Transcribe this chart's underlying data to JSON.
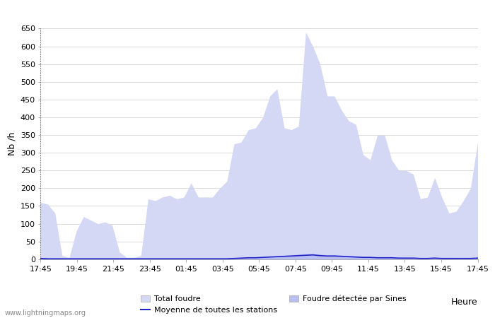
{
  "heure_label": "Heure",
  "ylabel": "Nb /h",
  "ylim": [
    0,
    650
  ],
  "yticks": [
    0,
    50,
    100,
    150,
    200,
    250,
    300,
    350,
    400,
    450,
    500,
    550,
    600,
    650
  ],
  "xtick_labels": [
    "17:45",
    "19:45",
    "21:45",
    "23:45",
    "01:45",
    "03:45",
    "05:45",
    "07:45",
    "09:45",
    "11:45",
    "13:45",
    "15:45",
    "17:45"
  ],
  "watermark": "www.lightningmaps.org",
  "total_foudre_color": "#d4d8f4",
  "sines_color": "#b8bef0",
  "moyenne_color": "#2222cc",
  "background_color": "#ffffff",
  "grid_color": "#cccccc",
  "spine_color": "#888888",
  "title_fontsize": 11,
  "axis_fontsize": 9,
  "tick_fontsize": 8,
  "total_foudre": [
    160,
    155,
    130,
    10,
    5,
    80,
    120,
    110,
    100,
    105,
    95,
    20,
    5,
    5,
    10,
    170,
    165,
    175,
    180,
    170,
    175,
    215,
    175,
    175,
    175,
    200,
    220,
    325,
    330,
    365,
    370,
    400,
    460,
    480,
    370,
    365,
    375,
    640,
    600,
    550,
    460,
    460,
    420,
    390,
    380,
    295,
    280,
    350,
    350,
    280,
    250,
    250,
    240,
    170,
    175,
    230,
    175,
    130,
    135,
    165,
    200,
    330
  ],
  "sines": [
    5,
    3,
    2,
    1,
    1,
    2,
    2,
    2,
    2,
    2,
    2,
    1,
    1,
    1,
    1,
    2,
    2,
    2,
    2,
    2,
    2,
    3,
    2,
    2,
    2,
    2,
    3,
    4,
    5,
    6,
    6,
    7,
    8,
    9,
    10,
    12,
    14,
    15,
    16,
    14,
    12,
    12,
    11,
    10,
    9,
    8,
    7,
    6,
    5,
    5,
    4,
    4,
    3,
    3,
    3,
    4,
    3,
    3,
    2,
    2,
    3,
    5
  ],
  "moyenne": [
    2,
    1,
    1,
    1,
    1,
    1,
    1,
    1,
    1,
    1,
    1,
    1,
    1,
    1,
    1,
    1,
    1,
    1,
    1,
    1,
    1,
    1,
    1,
    1,
    1,
    1,
    1,
    2,
    3,
    4,
    4,
    5,
    6,
    7,
    8,
    9,
    10,
    11,
    12,
    10,
    9,
    9,
    8,
    7,
    6,
    5,
    5,
    4,
    4,
    4,
    3,
    3,
    3,
    2,
    2,
    3,
    2,
    2,
    2,
    2,
    2,
    3
  ],
  "legend_total": "Total foudre",
  "legend_moyenne": "Moyenne de toutes les stations",
  "legend_sines": "Foudre détectée par Sines"
}
